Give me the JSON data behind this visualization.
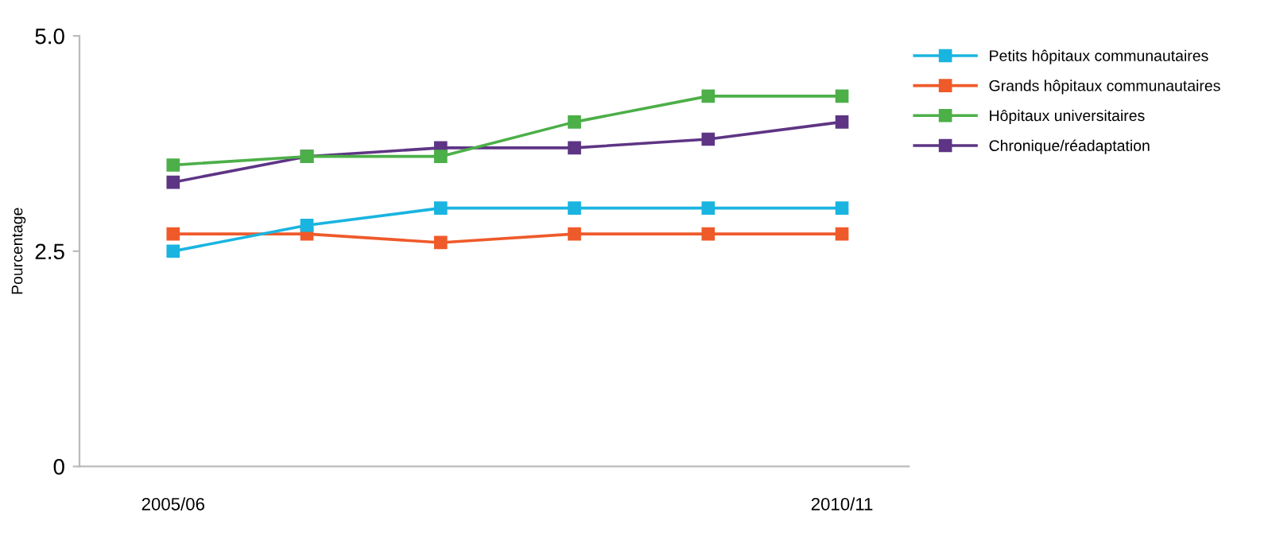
{
  "chart_data": {
    "type": "line",
    "ylabel": "Pourcentage",
    "categories": [
      "2005/06",
      null,
      null,
      null,
      null,
      "2010/11"
    ],
    "ylim": [
      0,
      5
    ],
    "yticks": [
      0,
      2.5,
      {
        "value": 5,
        "label": "5.0"
      }
    ],
    "marker": "square",
    "line_style": "solid",
    "grid": false,
    "legend": "right",
    "series": [
      {
        "name": "Petits hôpitaux communautaires",
        "color": "#1ab4e0",
        "values": [
          2.5,
          2.8,
          3.0,
          3.0,
          3.0,
          3.0
        ]
      },
      {
        "name": "Grands hôpitaux communautaires",
        "color": "#ef5a2a",
        "values": [
          2.7,
          2.7,
          2.6,
          2.7,
          2.7,
          2.7
        ]
      },
      {
        "name": "Hôpitaux universitaires",
        "color": "#4caf48",
        "values": [
          3.5,
          3.6,
          3.6,
          4.0,
          4.3,
          4.3
        ]
      },
      {
        "name": "Chronique/réadaptation",
        "color": "#5e3585",
        "values": [
          3.3,
          3.6,
          3.7,
          3.7,
          3.8,
          4.0
        ]
      }
    ]
  }
}
